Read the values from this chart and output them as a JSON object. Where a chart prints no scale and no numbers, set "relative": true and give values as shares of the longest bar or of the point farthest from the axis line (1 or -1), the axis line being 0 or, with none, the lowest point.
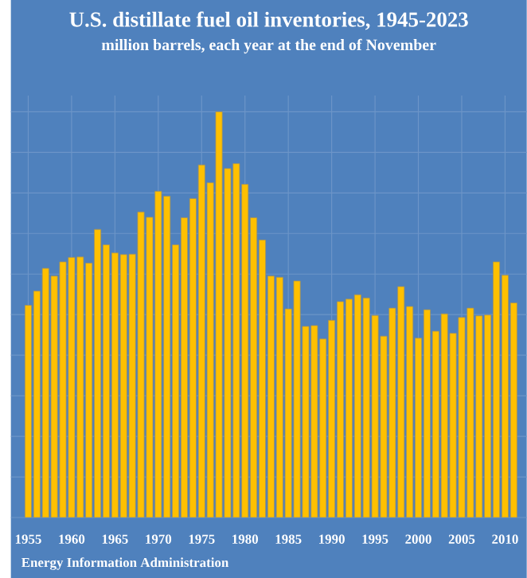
{
  "chart_data": {
    "type": "bar",
    "title": "U.S. distillate fuel oil inventories, 1945-2023",
    "subtitle": "million barrels, each year at the end of November",
    "annotations": [
      "Energy Information Administration"
    ],
    "relative": true,
    "grid": true,
    "color": "#ffc000",
    "categories": [
      "1955",
      null,
      null,
      null,
      null,
      "1960",
      null,
      null,
      null,
      null,
      "1965",
      null,
      null,
      null,
      null,
      "1970",
      null,
      null,
      null,
      null,
      "1975",
      null,
      null,
      null,
      null,
      "1980",
      null,
      null,
      null,
      null,
      "1985",
      null,
      null,
      null,
      null,
      "1990",
      null,
      null,
      null,
      null,
      "1995",
      null,
      null,
      null,
      null,
      "2000",
      null,
      null,
      null,
      null,
      "2005",
      null,
      null,
      null,
      null,
      "2010",
      null
    ],
    "values": [
      0.523,
      0.558,
      0.614,
      0.595,
      0.63,
      0.641,
      0.642,
      0.627,
      0.71,
      0.672,
      0.652,
      0.648,
      0.649,
      0.753,
      0.74,
      0.804,
      0.792,
      0.672,
      0.739,
      0.786,
      0.869,
      0.825,
      1,
      0.86,
      0.872,
      0.821,
      0.739,
      0.684,
      0.595,
      0.592,
      0.514,
      0.583,
      0.471,
      0.473,
      0.44,
      0.486,
      0.532,
      0.538,
      0.549,
      0.541,
      0.498,
      0.447,
      0.516,
      0.569,
      0.52,
      0.442,
      0.512,
      0.459,
      0.502,
      0.454,
      0.493,
      0.516,
      0.497,
      0.499,
      0.63,
      0.597,
      0.529
    ]
  }
}
